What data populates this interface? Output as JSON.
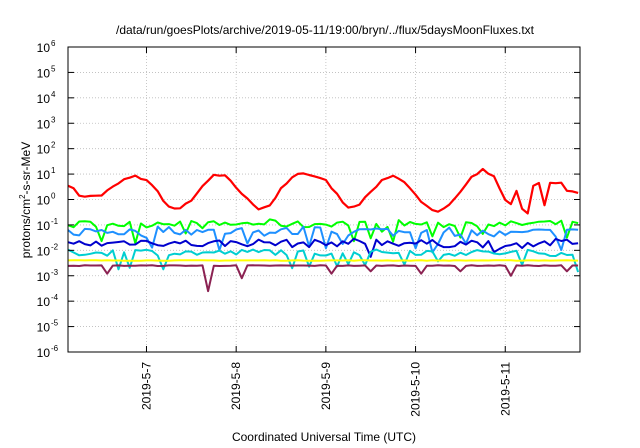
{
  "chart_data": {
    "type": "line",
    "title": "/data/run/goesPlots/archive/2019-05-11/19:00/bryn/../flux/5daysMoonFluxes.txt",
    "xlabel": "Coordinated Universal Time (UTC)",
    "ylabel": {
      "prefix": "protons/cm",
      "sup": "2",
      "suffix": "-s-sr-MeV"
    },
    "y_scale": "log",
    "ylim_exp": [
      -6,
      6
    ],
    "y_ticks": [
      {
        "exp": -6,
        "base": "10",
        "sup": "-6"
      },
      {
        "exp": -5,
        "base": "10",
        "sup": "-5"
      },
      {
        "exp": -4,
        "base": "10",
        "sup": "-4"
      },
      {
        "exp": -3,
        "base": "10",
        "sup": "-3"
      },
      {
        "exp": -2,
        "base": "10",
        "sup": "-2"
      },
      {
        "exp": -1,
        "base": "10",
        "sup": "-1"
      },
      {
        "exp": 0,
        "base": "10",
        "sup": "0"
      },
      {
        "exp": 1,
        "base": "10",
        "sup": "1"
      },
      {
        "exp": 2,
        "base": "10",
        "sup": "2"
      },
      {
        "exp": 3,
        "base": "10",
        "sup": "3"
      },
      {
        "exp": 4,
        "base": "10",
        "sup": "4"
      },
      {
        "exp": 5,
        "base": "10",
        "sup": "5"
      },
      {
        "exp": 6,
        "base": "10",
        "sup": "6"
      }
    ],
    "xlim": [
      "2019-05-06 03:00",
      "2019-05-11 20:00"
    ],
    "x_ticks": [
      {
        "label": "2019-5-7",
        "time": "2019-05-07 00:00"
      },
      {
        "label": "2019-5-8",
        "time": "2019-05-08 00:00"
      },
      {
        "label": "2019-5-9",
        "time": "2019-05-09 00:00"
      },
      {
        "label": "2019-5-10",
        "time": "2019-05-10 00:00"
      },
      {
        "label": "2019-5-11",
        "time": "2019-05-11 00:00"
      }
    ],
    "grid": true,
    "series": [
      {
        "color": "#ff0000",
        "points": [
          [
            "2019-05-06 03:00",
            4.0
          ],
          [
            "2019-05-06 06:00",
            1.5
          ],
          [
            "2019-05-06 09:00",
            1.3
          ],
          [
            "2019-05-06 12:00",
            1.5
          ],
          [
            "2019-05-06 15:00",
            3.0
          ],
          [
            "2019-05-06 18:00",
            6.0
          ],
          [
            "2019-05-06 21:00",
            8.0
          ],
          [
            "2019-05-07 00:00",
            6.0
          ],
          [
            "2019-05-07 03:00",
            2.0
          ],
          [
            "2019-05-07 06:00",
            0.5
          ],
          [
            "2019-05-07 09:00",
            0.4
          ],
          [
            "2019-05-07 12:00",
            1.0
          ],
          [
            "2019-05-07 15:00",
            3.0
          ],
          [
            "2019-05-07 18:00",
            9.0
          ],
          [
            "2019-05-07 21:00",
            8.0
          ],
          [
            "2019-05-08 00:00",
            3.0
          ],
          [
            "2019-05-08 03:00",
            1.0
          ],
          [
            "2019-05-08 06:00",
            0.45
          ],
          [
            "2019-05-08 09:00",
            0.6
          ],
          [
            "2019-05-08 12:00",
            2.5
          ],
          [
            "2019-05-08 15:00",
            7.0
          ],
          [
            "2019-05-08 18:00",
            12.0
          ],
          [
            "2019-05-08 21:00",
            8.0
          ],
          [
            "2019-05-09 00:00",
            6.0
          ],
          [
            "2019-05-09 03:00",
            1.5
          ],
          [
            "2019-05-09 06:00",
            0.5
          ],
          [
            "2019-05-09 09:00",
            0.6
          ],
          [
            "2019-05-09 12:00",
            2.0
          ],
          [
            "2019-05-09 15:00",
            6.0
          ],
          [
            "2019-05-09 18:00",
            9.0
          ],
          [
            "2019-05-09 21:00",
            5.0
          ],
          [
            "2019-05-10 00:00",
            1.5
          ],
          [
            "2019-05-10 03:00",
            0.5
          ],
          [
            "2019-05-10 06:00",
            0.3
          ],
          [
            "2019-05-10 09:00",
            0.6
          ],
          [
            "2019-05-10 12:00",
            2.0
          ],
          [
            "2019-05-10 15:00",
            7.0
          ],
          [
            "2019-05-10 18:00",
            15.0
          ],
          [
            "2019-05-10 21:00",
            8.0
          ],
          [
            "2019-05-11 00:00",
            1.0
          ],
          [
            "2019-05-11 02:00",
            0.6
          ],
          [
            "2019-05-11 03:00",
            2.0
          ],
          [
            "2019-05-11 04:00",
            0.3
          ],
          [
            "2019-05-11 05:00",
            0.5
          ],
          [
            "2019-05-11 07:00",
            0.2
          ],
          [
            "2019-05-11 08:00",
            50.0
          ],
          [
            "2019-05-11 09:00",
            5.0
          ],
          [
            "2019-05-11 10:00",
            1.5
          ],
          [
            "2019-05-11 11:00",
            0.25
          ],
          [
            "2019-05-11 12:00",
            5.0
          ],
          [
            "2019-05-11 13:00",
            8.0
          ],
          [
            "2019-05-11 14:00",
            3.0
          ],
          [
            "2019-05-11 15:00",
            4.0
          ],
          [
            "2019-05-11 17:00",
            2.0
          ],
          [
            "2019-05-11 20:00",
            2.0
          ]
        ]
      },
      {
        "color": "#00ff00",
        "points": [
          [
            "2019-05-06 03:00",
            0.1
          ],
          [
            "2019-05-06 12:00",
            0.12
          ],
          [
            "2019-05-06 21:00",
            0.1
          ],
          [
            "2019-05-07 06:00",
            0.13
          ],
          [
            "2019-05-07 15:00",
            0.1
          ],
          [
            "2019-05-08 00:00",
            0.11
          ],
          [
            "2019-05-08 09:00",
            0.12
          ],
          [
            "2019-05-08 18:00",
            0.1
          ],
          [
            "2019-05-09 03:00",
            0.12
          ],
          [
            "2019-05-09 12:00",
            0.1
          ],
          [
            "2019-05-09 21:00",
            0.12
          ],
          [
            "2019-05-10 06:00",
            0.1
          ],
          [
            "2019-05-10 15:00",
            0.12
          ],
          [
            "2019-05-11 00:00",
            0.1
          ],
          [
            "2019-05-11 09:00",
            0.12
          ],
          [
            "2019-05-11 20:00",
            0.1
          ]
        ]
      },
      {
        "color": "#1e90ff",
        "points": [
          [
            "2019-05-06 03:00",
            0.05
          ],
          [
            "2019-05-06 12:00",
            0.06
          ],
          [
            "2019-05-06 21:00",
            0.05
          ],
          [
            "2019-05-07 06:00",
            0.07
          ],
          [
            "2019-05-07 15:00",
            0.05
          ],
          [
            "2019-05-08 00:00",
            0.06
          ],
          [
            "2019-05-08 09:00",
            0.05
          ],
          [
            "2019-05-08 18:00",
            0.06
          ],
          [
            "2019-05-09 03:00",
            0.05
          ],
          [
            "2019-05-09 12:00",
            0.06
          ],
          [
            "2019-05-09 21:00",
            0.05
          ],
          [
            "2019-05-10 06:00",
            0.06
          ],
          [
            "2019-05-10 15:00",
            0.05
          ],
          [
            "2019-05-11 00:00",
            0.04
          ],
          [
            "2019-05-11 09:00",
            0.05
          ],
          [
            "2019-05-11 20:00",
            0.05
          ]
        ]
      },
      {
        "color": "#0000cd",
        "points": [
          [
            "2019-05-06 03:00",
            0.02
          ],
          [
            "2019-05-06 12:00",
            0.018
          ],
          [
            "2019-05-06 21:00",
            0.022
          ],
          [
            "2019-05-07 06:00",
            0.02
          ],
          [
            "2019-05-07 15:00",
            0.018
          ],
          [
            "2019-05-08 00:00",
            0.02
          ],
          [
            "2019-05-08 09:00",
            0.02
          ],
          [
            "2019-05-08 18:00",
            0.018
          ],
          [
            "2019-05-09 03:00",
            0.02
          ],
          [
            "2019-05-09 12:00",
            0.022
          ],
          [
            "2019-05-09 21:00",
            0.02
          ],
          [
            "2019-05-10 06:00",
            0.018
          ],
          [
            "2019-05-10 15:00",
            0.02
          ],
          [
            "2019-05-11 00:00",
            0.015
          ],
          [
            "2019-05-11 09:00",
            0.02
          ],
          [
            "2019-05-11 20:00",
            0.02
          ]
        ]
      },
      {
        "color": "#00ced1",
        "points": [
          [
            "2019-05-06 03:00",
            0.008
          ],
          [
            "2019-05-06 12:00",
            0.008
          ],
          [
            "2019-05-06 21:00",
            0.009
          ],
          [
            "2019-05-07 06:00",
            0.008
          ],
          [
            "2019-05-07 15:00",
            0.008
          ],
          [
            "2019-05-08 00:00",
            0.008
          ],
          [
            "2019-05-08 09:00",
            0.009
          ],
          [
            "2019-05-08 18:00",
            0.008
          ],
          [
            "2019-05-09 03:00",
            0.008
          ],
          [
            "2019-05-09 12:00",
            0.008
          ],
          [
            "2019-05-09 21:00",
            0.009
          ],
          [
            "2019-05-10 06:00",
            0.008
          ],
          [
            "2019-05-10 15:00",
            0.008
          ],
          [
            "2019-05-11 00:00",
            0.008
          ],
          [
            "2019-05-11 09:00",
            0.008
          ],
          [
            "2019-05-11 20:00",
            0.008
          ]
        ]
      },
      {
        "color": "#ffff00",
        "points": [
          [
            "2019-05-06 03:00",
            0.004
          ],
          [
            "2019-05-11 20:00",
            0.004
          ]
        ]
      },
      {
        "color": "#8b2252",
        "points": [
          [
            "2019-05-06 03:00",
            0.0025
          ],
          [
            "2019-05-06 18:00",
            0.0025
          ],
          [
            "2019-05-07 06:00",
            0.0025
          ],
          [
            "2019-05-07 18:00",
            0.0025
          ],
          [
            "2019-05-08 06:00",
            0.0025
          ],
          [
            "2019-05-08 18:00",
            0.0025
          ],
          [
            "2019-05-09 06:00",
            0.0025
          ],
          [
            "2019-05-09 18:00",
            0.0025
          ],
          [
            "2019-05-10 06:00",
            0.0025
          ],
          [
            "2019-05-10 18:00",
            0.0025
          ],
          [
            "2019-05-11 06:00",
            0.0025
          ],
          [
            "2019-05-11 20:00",
            0.0025
          ]
        ],
        "dips": [
          [
            "2019-05-06 13:00",
            0.0012
          ],
          [
            "2019-05-07 17:00",
            0.00025
          ],
          [
            "2019-05-08 02:00",
            0.0008
          ],
          [
            "2019-05-09 01:00",
            0.0012
          ],
          [
            "2019-05-09 12:00",
            0.0015
          ],
          [
            "2019-05-10 01:00",
            0.0012
          ],
          [
            "2019-05-10 12:00",
            0.0015
          ],
          [
            "2019-05-11 01:00",
            0.001
          ],
          [
            "2019-05-11 17:00",
            0.0015
          ]
        ]
      }
    ]
  }
}
